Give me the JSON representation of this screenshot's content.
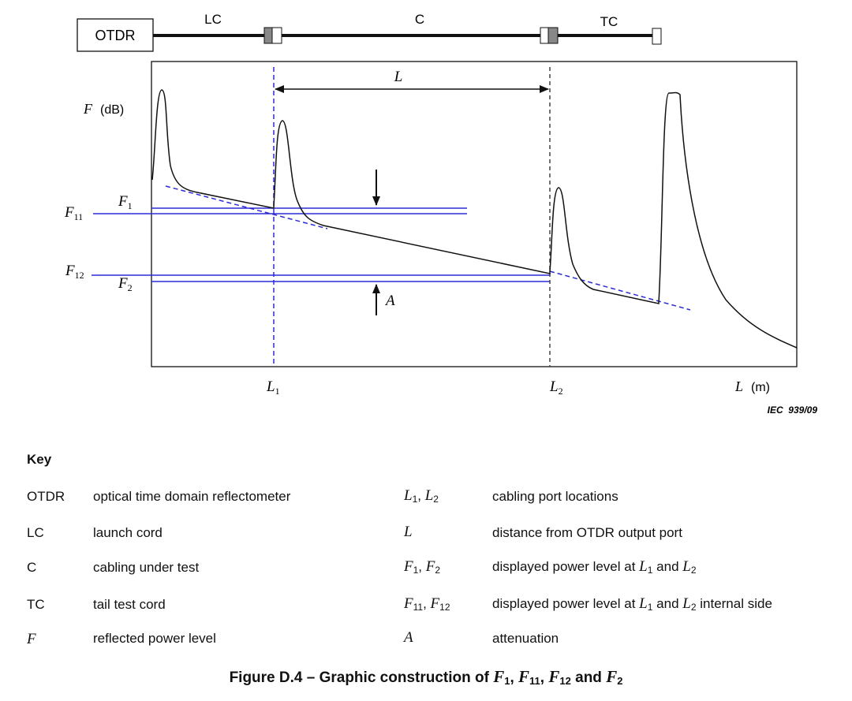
{
  "diagram": {
    "otdr_box_label": "OTDR",
    "segment_labels": {
      "lc": "LC",
      "c": "C",
      "tc": "TC"
    },
    "y_axis": {
      "symbol": "F",
      "unit": "(dB)"
    },
    "x_axis": {
      "symbol": "L",
      "unit": "(m)"
    },
    "distance_label": "L",
    "attenuation_label": "A",
    "port1": {
      "symbol": "L",
      "sub": "1"
    },
    "port2": {
      "symbol": "L",
      "sub": "2"
    },
    "level_labels": {
      "f1": {
        "symbol": "F",
        "sub": "1"
      },
      "f11": {
        "symbol": "F",
        "sub": "11"
      },
      "f12": {
        "symbol": "F",
        "sub": "12"
      },
      "f2": {
        "symbol": "F",
        "sub": "2"
      }
    },
    "reference": "IEC  939/09"
  },
  "key": {
    "title": "Key",
    "left": [
      {
        "term": "OTDR",
        "description": "optical time domain reflectometer"
      },
      {
        "term": "LC",
        "description": "launch cord"
      },
      {
        "term": "C",
        "description": "cabling under test"
      },
      {
        "term": "TC",
        "description": "tail test cord"
      },
      {
        "term": "F",
        "description": "reflected power level"
      }
    ],
    "right": [
      {
        "t1": "L",
        "s1": "1",
        "sep": ", ",
        "t2": "L",
        "s2": "2",
        "description": "cabling port locations"
      },
      {
        "t1": "L",
        "description": "distance from OTDR output port"
      },
      {
        "t1": "F",
        "s1": "1",
        "sep": ", ",
        "t2": "F",
        "s2": "2",
        "d1": "displayed power level at ",
        "dv1": "L",
        "ds1": "1",
        "d2": " and ",
        "dv2": "L",
        "ds2": "2",
        "d3": ""
      },
      {
        "t1": "F",
        "s1": "11",
        "sep": ", ",
        "t2": "F",
        "s2": "12",
        "d1": "displayed power level at ",
        "dv1": "L",
        "ds1": "1",
        "d2": " and ",
        "dv2": "L",
        "ds2": "2",
        "d3": " internal side"
      },
      {
        "t1": "A",
        "description": "attenuation"
      }
    ]
  },
  "caption": {
    "prefix": "Figure D.4 – Graphic construction of ",
    "v1": "F",
    "s1": "1",
    "sep1": ", ",
    "v2": "F",
    "s2": "11",
    "sep2": ", ",
    "v3": "F",
    "s3": "12",
    "sep3": " and ",
    "v4": "F",
    "s4": "2"
  },
  "colors": {
    "blue": "#2b2bd6",
    "line": "#111111",
    "dashed_gray": "#444444",
    "connector": "#888888"
  }
}
